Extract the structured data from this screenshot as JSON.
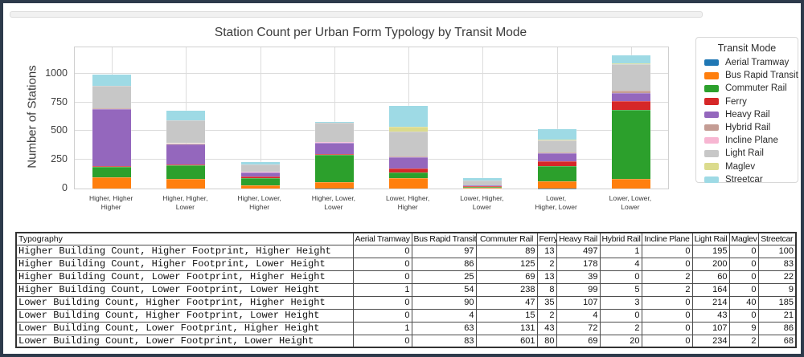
{
  "colors": {
    "frame_border": "#2d3a4b",
    "gridline": "#dcdcdc",
    "plot_border": "#cfcfcf"
  },
  "chart_data": {
    "type": "bar",
    "stacked": true,
    "title": "Station Count per Urban Form Typology by Transit Mode",
    "xlabel": "",
    "ylabel": "Number of Stations",
    "ylim": [
      0,
      1230
    ],
    "yticks": [
      0,
      250,
      500,
      750,
      1000
    ],
    "grid": true,
    "legend_title": "Transit Mode",
    "legend_position": "right",
    "categories": [
      [
        "Higher, Higher",
        "Higher"
      ],
      [
        "Higher, Higher,",
        "Lower"
      ],
      [
        "Higher, Lower,",
        "Higher"
      ],
      [
        "Higher, Lower,",
        "Lower"
      ],
      [
        "Lower, Higher,",
        "Higher"
      ],
      [
        "Lower, Higher,",
        "Lower"
      ],
      [
        "Lower,",
        "Higher, Lower"
      ],
      [
        "Lower, Lower,",
        "Lower"
      ]
    ],
    "series": [
      {
        "name": "Aerial Tramway",
        "color": "#1f77b4",
        "values": [
          0,
          0,
          0,
          1,
          0,
          0,
          1,
          0
        ]
      },
      {
        "name": "Bus Rapid Transit",
        "color": "#ff7f0e",
        "values": [
          97,
          86,
          25,
          54,
          90,
          4,
          63,
          83
        ]
      },
      {
        "name": "Commuter Rail",
        "color": "#2ca02c",
        "values": [
          89,
          125,
          69,
          238,
          47,
          15,
          131,
          601
        ]
      },
      {
        "name": "Ferry",
        "color": "#d62728",
        "values": [
          13,
          2,
          13,
          8,
          35,
          2,
          43,
          80
        ]
      },
      {
        "name": "Heavy Rail",
        "color": "#9467bd",
        "values": [
          497,
          178,
          39,
          99,
          107,
          4,
          72,
          69
        ]
      },
      {
        "name": "Hybrid Rail",
        "color": "#c49c94",
        "values": [
          1,
          4,
          0,
          5,
          3,
          0,
          2,
          20
        ]
      },
      {
        "name": "Incline Plane",
        "color": "#f7b6d2",
        "values": [
          0,
          0,
          2,
          2,
          0,
          0,
          0,
          0
        ]
      },
      {
        "name": "Light Rail",
        "color": "#c7c7c7",
        "values": [
          195,
          200,
          60,
          164,
          214,
          43,
          107,
          234
        ]
      },
      {
        "name": "Maglev",
        "color": "#dbdb8d",
        "values": [
          0,
          0,
          0,
          0,
          40,
          0,
          9,
          2
        ]
      },
      {
        "name": "Streetcar",
        "color": "#9edae5",
        "values": [
          100,
          83,
          22,
          9,
          185,
          21,
          86,
          68
        ]
      }
    ]
  },
  "table": {
    "columns": [
      "Typography",
      "Aerial Tramway",
      "Bus Rapid Transit",
      "Commuter Rail",
      "Ferry",
      "Heavy Rail",
      "Hybrid Rail",
      "Incline Plane",
      "Light Rail",
      "Maglev",
      "Streetcar"
    ],
    "rows": [
      {
        "label": "Higher Building Count, Higher Footprint, Higher Height",
        "values": [
          0,
          97,
          89,
          13,
          497,
          1,
          0,
          195,
          0,
          100
        ]
      },
      {
        "label": "Higher Building Count, Higher Footprint, Lower Height",
        "values": [
          0,
          86,
          125,
          2,
          178,
          4,
          0,
          200,
          0,
          83
        ]
      },
      {
        "label": "Higher Building Count, Lower Footprint, Higher Height",
        "values": [
          0,
          25,
          69,
          13,
          39,
          0,
          2,
          60,
          0,
          22
        ]
      },
      {
        "label": "Higher Building Count, Lower Footprint, Lower Height",
        "values": [
          1,
          54,
          238,
          8,
          99,
          5,
          2,
          164,
          0,
          9
        ]
      },
      {
        "label": "Lower Building Count, Higher Footprint, Higher Height",
        "values": [
          0,
          90,
          47,
          35,
          107,
          3,
          0,
          214,
          40,
          185
        ]
      },
      {
        "label": "Lower Building Count, Higher Footprint, Lower Height",
        "values": [
          0,
          4,
          15,
          2,
          4,
          0,
          0,
          43,
          0,
          21
        ]
      },
      {
        "label": "Lower Building Count, Lower Footprint, Higher Height",
        "values": [
          1,
          63,
          131,
          43,
          72,
          2,
          0,
          107,
          9,
          86
        ]
      },
      {
        "label": "Lower Building Count, Lower Footprint, Lower Height",
        "values": [
          0,
          83,
          601,
          80,
          69,
          20,
          0,
          234,
          2,
          68
        ]
      }
    ]
  }
}
